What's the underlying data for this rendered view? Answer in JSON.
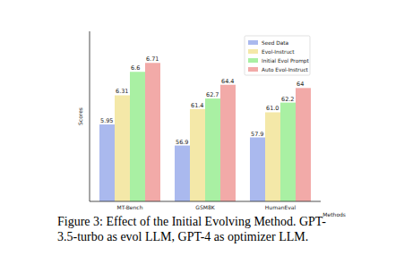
{
  "chart_data": [
    {
      "type": "bar",
      "categories": [
        "MT-Bench"
      ],
      "series": [
        {
          "name": "Seed Data",
          "color": "#aab9ee",
          "values": [
            5.95
          ]
        },
        {
          "name": "Evol-Instruct",
          "color": "#f4e8a8",
          "values": [
            6.31
          ]
        },
        {
          "name": "Initial Evol Prompt",
          "color": "#a9f0a3",
          "values": [
            6.6
          ]
        },
        {
          "name": "Auto Evol-Instruct",
          "color": "#f2aaa8",
          "values": [
            6.71
          ]
        }
      ],
      "ylim": [
        5,
        7.1
      ],
      "y_label": "Scores",
      "legend": "upper right",
      "data_labels": true,
      "tick_labels": "x"
    },
    {
      "type": "bar",
      "categories": [
        "GSM8K"
      ],
      "series": [
        {
          "color": "#aab9ee",
          "values": [
            56.9
          ]
        },
        {
          "color": "#f4e8a8",
          "values": [
            61.4
          ]
        },
        {
          "color": "#a9f0a3",
          "values": [
            62.7
          ]
        },
        {
          "color": "#f2aaa8",
          "values": [
            64.4
          ]
        }
      ],
      "ylim": [
        50,
        71
      ],
      "data_labels": true,
      "tick_labels": "x"
    },
    {
      "type": "bar",
      "categories": [
        "HumanEval"
      ],
      "series": [
        {
          "color": "#aab9ee",
          "values": [
            57.9
          ]
        },
        {
          "color": "#f4e8a8",
          "values": [
            61.0
          ],
          "value_labels": [
            "61.0"
          ]
        },
        {
          "color": "#a9f0a3",
          "values": [
            62.2
          ]
        },
        {
          "color": "#f2aaa8",
          "values": [
            64
          ]
        }
      ],
      "ylim": [
        50,
        71
      ],
      "x_label": "Methods",
      "data_labels": true,
      "tick_labels": "x"
    }
  ],
  "caption": [
    "Figure 3: Effect of the Initial Evolving Method. GPT-",
    "3.5-turbo as evol LLM, GPT-4 as optimizer LLM."
  ]
}
